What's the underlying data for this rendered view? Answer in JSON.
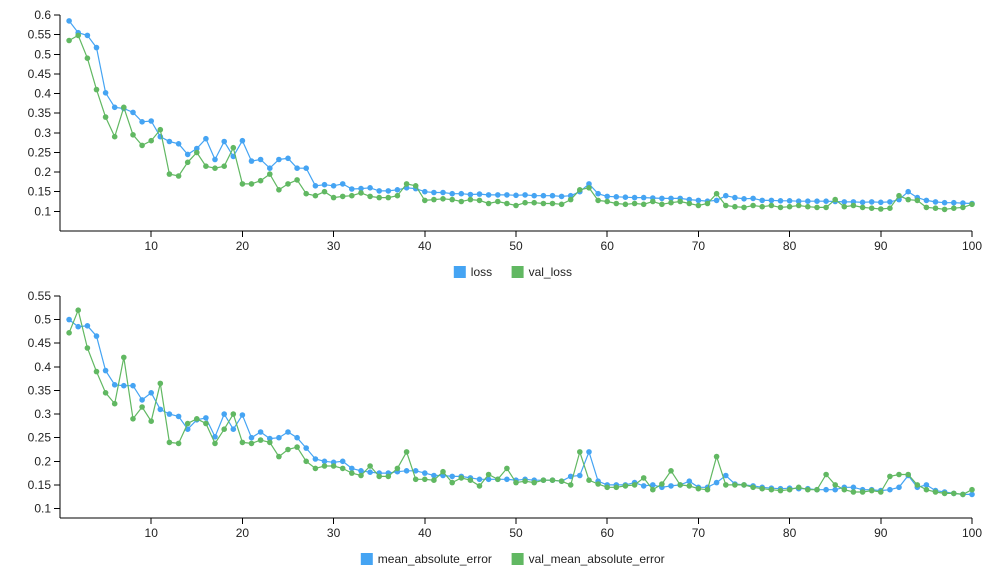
{
  "chart_data": [
    {
      "type": "line",
      "x": [
        1,
        2,
        3,
        4,
        5,
        6,
        7,
        8,
        9,
        10,
        11,
        12,
        13,
        14,
        15,
        16,
        17,
        18,
        19,
        20,
        21,
        22,
        23,
        24,
        25,
        26,
        27,
        28,
        29,
        30,
        31,
        32,
        33,
        34,
        35,
        36,
        37,
        38,
        39,
        40,
        41,
        42,
        43,
        44,
        45,
        46,
        47,
        48,
        49,
        50,
        51,
        52,
        53,
        54,
        55,
        56,
        57,
        58,
        59,
        60,
        61,
        62,
        63,
        64,
        65,
        66,
        67,
        68,
        69,
        70,
        71,
        72,
        73,
        74,
        75,
        76,
        77,
        78,
        79,
        80,
        81,
        82,
        83,
        84,
        85,
        86,
        87,
        88,
        89,
        90,
        91,
        92,
        93,
        94,
        95,
        96,
        97,
        98,
        99,
        100
      ],
      "xlim": [
        0,
        100
      ],
      "ylim": [
        0.05,
        0.6
      ],
      "x_ticks": [
        10,
        20,
        30,
        40,
        50,
        60,
        70,
        80,
        90,
        100
      ],
      "y_ticks": [
        0.1,
        0.15,
        0.2,
        0.25,
        0.3,
        0.35,
        0.4,
        0.45,
        0.5,
        0.55,
        0.6
      ],
      "legend_position": "bottom",
      "series": [
        {
          "name": "loss",
          "color": "#45a4f3",
          "values": [
            0.585,
            0.555,
            0.548,
            0.517,
            0.402,
            0.365,
            0.362,
            0.352,
            0.328,
            0.33,
            0.29,
            0.278,
            0.272,
            0.245,
            0.26,
            0.285,
            0.232,
            0.278,
            0.24,
            0.28,
            0.228,
            0.232,
            0.21,
            0.232,
            0.235,
            0.21,
            0.21,
            0.165,
            0.168,
            0.165,
            0.17,
            0.157,
            0.158,
            0.16,
            0.152,
            0.152,
            0.155,
            0.16,
            0.158,
            0.15,
            0.148,
            0.148,
            0.145,
            0.145,
            0.143,
            0.144,
            0.142,
            0.142,
            0.142,
            0.141,
            0.142,
            0.14,
            0.14,
            0.14,
            0.138,
            0.14,
            0.15,
            0.17,
            0.145,
            0.138,
            0.137,
            0.136,
            0.135,
            0.135,
            0.134,
            0.133,
            0.133,
            0.133,
            0.13,
            0.128,
            0.126,
            0.128,
            0.14,
            0.135,
            0.132,
            0.133,
            0.128,
            0.128,
            0.127,
            0.127,
            0.126,
            0.126,
            0.126,
            0.126,
            0.125,
            0.124,
            0.124,
            0.123,
            0.124,
            0.123,
            0.124,
            0.13,
            0.15,
            0.135,
            0.128,
            0.124,
            0.122,
            0.122,
            0.121,
            0.12
          ]
        },
        {
          "name": "val_loss",
          "color": "#61b862",
          "values": [
            0.535,
            0.548,
            0.49,
            0.41,
            0.34,
            0.29,
            0.365,
            0.295,
            0.268,
            0.28,
            0.308,
            0.195,
            0.19,
            0.225,
            0.25,
            0.215,
            0.21,
            0.215,
            0.262,
            0.17,
            0.17,
            0.178,
            0.195,
            0.155,
            0.17,
            0.18,
            0.145,
            0.14,
            0.15,
            0.135,
            0.138,
            0.14,
            0.147,
            0.138,
            0.135,
            0.135,
            0.14,
            0.17,
            0.165,
            0.128,
            0.13,
            0.132,
            0.13,
            0.125,
            0.13,
            0.128,
            0.12,
            0.125,
            0.12,
            0.115,
            0.122,
            0.122,
            0.12,
            0.12,
            0.118,
            0.13,
            0.155,
            0.16,
            0.128,
            0.125,
            0.12,
            0.118,
            0.12,
            0.118,
            0.125,
            0.118,
            0.122,
            0.125,
            0.12,
            0.115,
            0.12,
            0.145,
            0.115,
            0.112,
            0.11,
            0.115,
            0.112,
            0.115,
            0.11,
            0.112,
            0.115,
            0.112,
            0.11,
            0.11,
            0.13,
            0.112,
            0.115,
            0.11,
            0.108,
            0.106,
            0.108,
            0.14,
            0.13,
            0.128,
            0.11,
            0.108,
            0.105,
            0.108,
            0.11,
            0.118
          ]
        }
      ]
    },
    {
      "type": "line",
      "x": [
        1,
        2,
        3,
        4,
        5,
        6,
        7,
        8,
        9,
        10,
        11,
        12,
        13,
        14,
        15,
        16,
        17,
        18,
        19,
        20,
        21,
        22,
        23,
        24,
        25,
        26,
        27,
        28,
        29,
        30,
        31,
        32,
        33,
        34,
        35,
        36,
        37,
        38,
        39,
        40,
        41,
        42,
        43,
        44,
        45,
        46,
        47,
        48,
        49,
        50,
        51,
        52,
        53,
        54,
        55,
        56,
        57,
        58,
        59,
        60,
        61,
        62,
        63,
        64,
        65,
        66,
        67,
        68,
        69,
        70,
        71,
        72,
        73,
        74,
        75,
        76,
        77,
        78,
        79,
        80,
        81,
        82,
        83,
        84,
        85,
        86,
        87,
        88,
        89,
        90,
        91,
        92,
        93,
        94,
        95,
        96,
        97,
        98,
        99,
        100
      ],
      "xlim": [
        0,
        100
      ],
      "ylim": [
        0.08,
        0.55
      ],
      "x_ticks": [
        10,
        20,
        30,
        40,
        50,
        60,
        70,
        80,
        90,
        100
      ],
      "y_ticks": [
        0.1,
        0.15,
        0.2,
        0.25,
        0.3,
        0.35,
        0.4,
        0.45,
        0.5,
        0.55
      ],
      "legend_position": "bottom",
      "series": [
        {
          "name": "mean_absolute_error",
          "color": "#45a4f3",
          "values": [
            0.5,
            0.485,
            0.487,
            0.465,
            0.392,
            0.362,
            0.36,
            0.36,
            0.33,
            0.345,
            0.31,
            0.3,
            0.295,
            0.268,
            0.288,
            0.292,
            0.252,
            0.3,
            0.268,
            0.298,
            0.25,
            0.262,
            0.248,
            0.25,
            0.262,
            0.25,
            0.228,
            0.205,
            0.2,
            0.198,
            0.2,
            0.185,
            0.18,
            0.177,
            0.175,
            0.175,
            0.178,
            0.18,
            0.18,
            0.175,
            0.17,
            0.17,
            0.168,
            0.168,
            0.165,
            0.162,
            0.162,
            0.162,
            0.162,
            0.16,
            0.162,
            0.16,
            0.16,
            0.16,
            0.158,
            0.168,
            0.17,
            0.22,
            0.158,
            0.15,
            0.15,
            0.15,
            0.155,
            0.148,
            0.15,
            0.145,
            0.148,
            0.15,
            0.158,
            0.145,
            0.145,
            0.155,
            0.17,
            0.152,
            0.15,
            0.148,
            0.145,
            0.143,
            0.142,
            0.143,
            0.142,
            0.142,
            0.14,
            0.14,
            0.14,
            0.145,
            0.145,
            0.14,
            0.14,
            0.138,
            0.14,
            0.145,
            0.17,
            0.145,
            0.15,
            0.138,
            0.135,
            0.132,
            0.13,
            0.13
          ]
        },
        {
          "name": "val_mean_absolute_error",
          "color": "#61b862",
          "values": [
            0.472,
            0.52,
            0.44,
            0.39,
            0.345,
            0.322,
            0.42,
            0.29,
            0.315,
            0.285,
            0.365,
            0.24,
            0.238,
            0.28,
            0.29,
            0.28,
            0.238,
            0.268,
            0.3,
            0.24,
            0.238,
            0.245,
            0.24,
            0.21,
            0.225,
            0.23,
            0.2,
            0.185,
            0.19,
            0.19,
            0.185,
            0.175,
            0.17,
            0.19,
            0.168,
            0.168,
            0.185,
            0.22,
            0.162,
            0.162,
            0.16,
            0.178,
            0.155,
            0.165,
            0.16,
            0.148,
            0.172,
            0.162,
            0.185,
            0.155,
            0.158,
            0.155,
            0.16,
            0.16,
            0.158,
            0.15,
            0.22,
            0.16,
            0.152,
            0.145,
            0.145,
            0.148,
            0.15,
            0.165,
            0.14,
            0.152,
            0.18,
            0.15,
            0.148,
            0.142,
            0.14,
            0.21,
            0.15,
            0.15,
            0.15,
            0.145,
            0.142,
            0.14,
            0.138,
            0.14,
            0.145,
            0.14,
            0.14,
            0.172,
            0.15,
            0.14,
            0.135,
            0.135,
            0.138,
            0.135,
            0.168,
            0.172,
            0.172,
            0.15,
            0.14,
            0.135,
            0.132,
            0.132,
            0.13,
            0.14
          ]
        }
      ]
    }
  ]
}
